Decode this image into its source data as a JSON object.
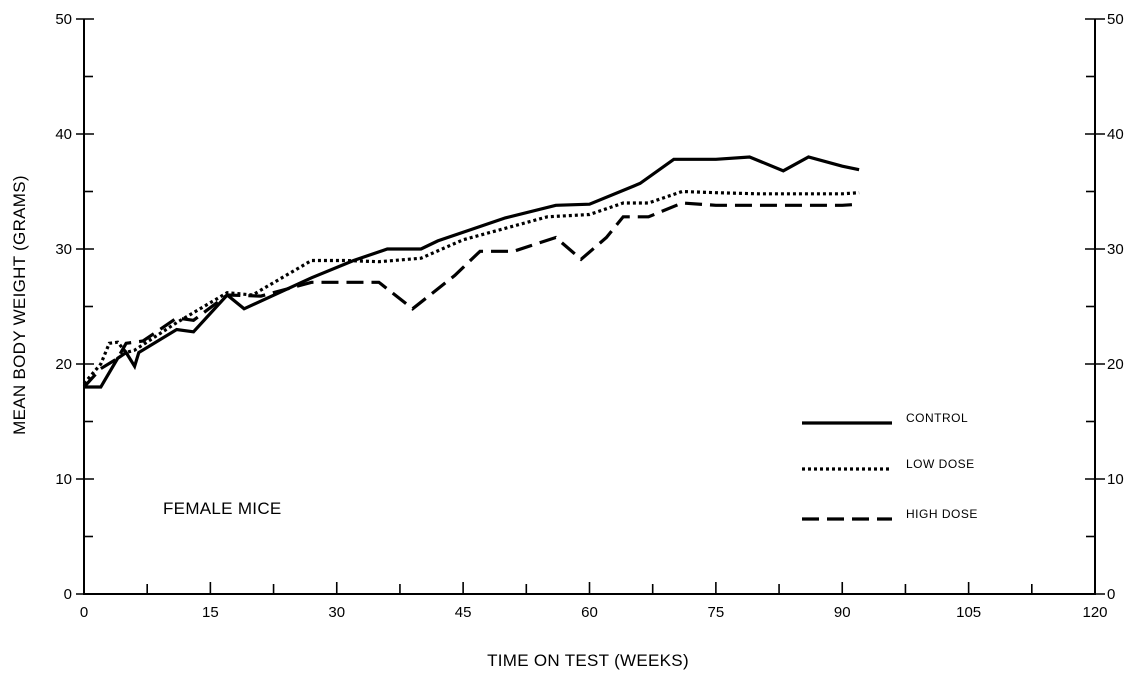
{
  "chart_data": {
    "type": "line",
    "xlabel": "TIME ON TEST (WEEKS)",
    "ylabel": "MEAN BODY WEIGHT (GRAMS)",
    "xlim": [
      0,
      120
    ],
    "ylim": [
      0,
      50
    ],
    "xticks": [
      "0",
      "15",
      "30",
      "45",
      "60",
      "75",
      "90",
      "105",
      "120"
    ],
    "yticks": [
      "0",
      "10",
      "20",
      "30",
      "40",
      "50"
    ],
    "y_axis_both_sides": true,
    "grid": false,
    "legend_position": "lower-right",
    "annotation": "FEMALE MICE",
    "series": [
      {
        "name": "CONTROL",
        "style": "solid",
        "points": [
          [
            0,
            18
          ],
          [
            2,
            18
          ],
          [
            4,
            20.5
          ],
          [
            5,
            21
          ],
          [
            6,
            19.8
          ],
          [
            6.5,
            21
          ],
          [
            11,
            23
          ],
          [
            13,
            22.8
          ],
          [
            17,
            26
          ],
          [
            19,
            24.8
          ],
          [
            27,
            27.5
          ],
          [
            32,
            29
          ],
          [
            36,
            30
          ],
          [
            40,
            30
          ],
          [
            42,
            30.7
          ],
          [
            46,
            31.7
          ],
          [
            50,
            32.7
          ],
          [
            56,
            33.8
          ],
          [
            60,
            33.9
          ],
          [
            66,
            35.7
          ],
          [
            70,
            37.8
          ],
          [
            75,
            37.8
          ],
          [
            79,
            38
          ],
          [
            83,
            36.8
          ],
          [
            86,
            38
          ],
          [
            90,
            37.2
          ],
          [
            92,
            36.9
          ]
        ]
      },
      {
        "name": "LOW DOSE",
        "style": "dotted",
        "points": [
          [
            0,
            18.3
          ],
          [
            2,
            20
          ],
          [
            3,
            21.8
          ],
          [
            4,
            21.9
          ],
          [
            5,
            21
          ],
          [
            6,
            21.2
          ],
          [
            11,
            23.6
          ],
          [
            17,
            26.2
          ],
          [
            20,
            26
          ],
          [
            27,
            29
          ],
          [
            31,
            29
          ],
          [
            35,
            28.9
          ],
          [
            40,
            29.2
          ],
          [
            45,
            30.8
          ],
          [
            50,
            31.8
          ],
          [
            55,
            32.8
          ],
          [
            60,
            33
          ],
          [
            64,
            34
          ],
          [
            67,
            34
          ],
          [
            71,
            35
          ],
          [
            75,
            34.9
          ],
          [
            80,
            34.8
          ],
          [
            85,
            34.8
          ],
          [
            90,
            34.8
          ],
          [
            92,
            34.9
          ]
        ]
      },
      {
        "name": "HIGH DOSE",
        "style": "dashed",
        "points": [
          [
            0,
            18
          ],
          [
            2,
            19.6
          ],
          [
            4,
            20.5
          ],
          [
            5,
            21.8
          ],
          [
            7,
            22
          ],
          [
            11,
            24
          ],
          [
            13,
            23.8
          ],
          [
            17,
            26
          ],
          [
            21,
            25.9
          ],
          [
            27,
            27.1
          ],
          [
            30,
            27.1
          ],
          [
            35,
            27.1
          ],
          [
            39,
            24.8
          ],
          [
            44,
            27.7
          ],
          [
            47,
            29.8
          ],
          [
            51,
            29.8
          ],
          [
            56,
            31
          ],
          [
            59,
            29.1
          ],
          [
            62,
            31
          ],
          [
            64,
            32.8
          ],
          [
            67,
            32.8
          ],
          [
            71,
            34
          ],
          [
            75,
            33.8
          ],
          [
            80,
            33.8
          ],
          [
            85,
            33.8
          ],
          [
            90,
            33.8
          ],
          [
            92,
            33.9
          ]
        ]
      }
    ]
  }
}
